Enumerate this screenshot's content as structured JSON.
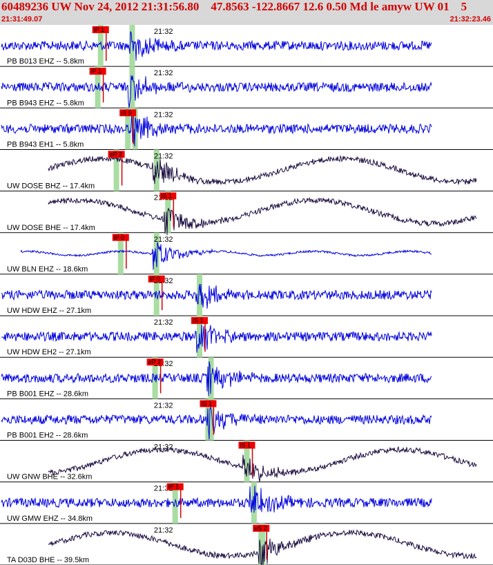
{
  "header": {
    "title": "60489236 UW Nov 24, 2012 21:31:56.80    47.8563 -122.8667 12.6 0.50 Md le amyw UW 01    5",
    "time_start": "21:31:49.07",
    "time_end": "21:32:23.46",
    "minute_label": "21:32"
  },
  "colors": {
    "header_bg": "#d8d8d8",
    "header_text": "#d40000",
    "trace_blue": "#0000dd",
    "trace_dark": "#1a0b3f",
    "pick_box": "#ee0000",
    "pick_line": "#cc0000",
    "window": "#a9dda3",
    "divider": "#000000"
  },
  "chart_data": {
    "type": "line",
    "title": "60489236 UW Nov 24, 2012 21:31:56.80",
    "x_range": [
      "21:31:49.07",
      "21:32:23.46"
    ],
    "x_unit": "time (UTC)",
    "series": [
      {
        "name": "PB B013 EHZ -- 5.8km",
        "color": "blue",
        "style": "noise",
        "pick_label": "iP 1",
        "pick_time": "21:31:55.8",
        "arrival_time": "21:31:58.0"
      },
      {
        "name": "PB B943 EHZ -- 5.8km",
        "color": "blue",
        "style": "noise",
        "pick_label": "iP 1",
        "pick_time": "21:31:55.6",
        "arrival_time": "21:31:58.0"
      },
      {
        "name": "PB B943 EH1 -- 5.8km",
        "color": "blue",
        "style": "noise",
        "pick_label": "iS 0",
        "pick_time": "21:31:57.7",
        "arrival_time": "21:31:58.2"
      },
      {
        "name": "UW DOSE BHZ -- 17.4km",
        "color": "dark",
        "style": "sine",
        "pick_label": "eP 2",
        "pick_time": "21:31:56.9",
        "arrival_time": "21:31:59.7"
      },
      {
        "name": "UW DOSE BHE -- 17.4km",
        "color": "dark",
        "style": "sine",
        "pick_label": "iS 1",
        "pick_time": "21:32:00.5",
        "arrival_time": "21:32:00.5"
      },
      {
        "name": "UW BLN EHZ -- 18.6km",
        "color": "blue",
        "style": "quiet",
        "pick_label": "iP 0",
        "pick_time": "21:31:57.2",
        "arrival_time": "21:31:59.7"
      },
      {
        "name": "UW HDW EHZ -- 27.1km",
        "color": "blue",
        "style": "noise",
        "pick_label": "iP 0",
        "pick_time": "21:31:59.7",
        "arrival_time": "21:32:02.7"
      },
      {
        "name": "UW HDW EH2 -- 27.1km",
        "color": "blue",
        "style": "noise",
        "pick_label": "iS 1",
        "pick_time": "21:32:02.7",
        "arrival_time": "21:32:02.7"
      },
      {
        "name": "PB B001 EHZ -- 28.6km",
        "color": "blue",
        "style": "noise",
        "pick_label": "eP 2",
        "pick_time": "21:31:59.6",
        "arrival_time": "21:32:03.5"
      },
      {
        "name": "PB B001 EH2 -- 28.6km",
        "color": "blue",
        "style": "noise",
        "pick_label": "iS 1",
        "pick_time": "21:32:03.3",
        "arrival_time": "21:32:03.5"
      },
      {
        "name": "UW GNW BHE -- 32.6km",
        "color": "dark",
        "style": "sine",
        "pick_label": "iS 1",
        "pick_time": "21:32:06.0",
        "arrival_time": "21:32:06.0"
      },
      {
        "name": "UW GMW EHZ -- 34.8km",
        "color": "blue",
        "style": "noise",
        "pick_label": "iP 1",
        "pick_time": "21:32:01.0",
        "arrival_time": "21:32:06.5"
      },
      {
        "name": "TA D03D BHE -- 39.5km",
        "color": "dark",
        "style": "sine",
        "pick_label": "eS 2",
        "pick_time": "21:32:07.0",
        "arrival_time": "21:32:07.1"
      }
    ],
    "grid": false
  }
}
